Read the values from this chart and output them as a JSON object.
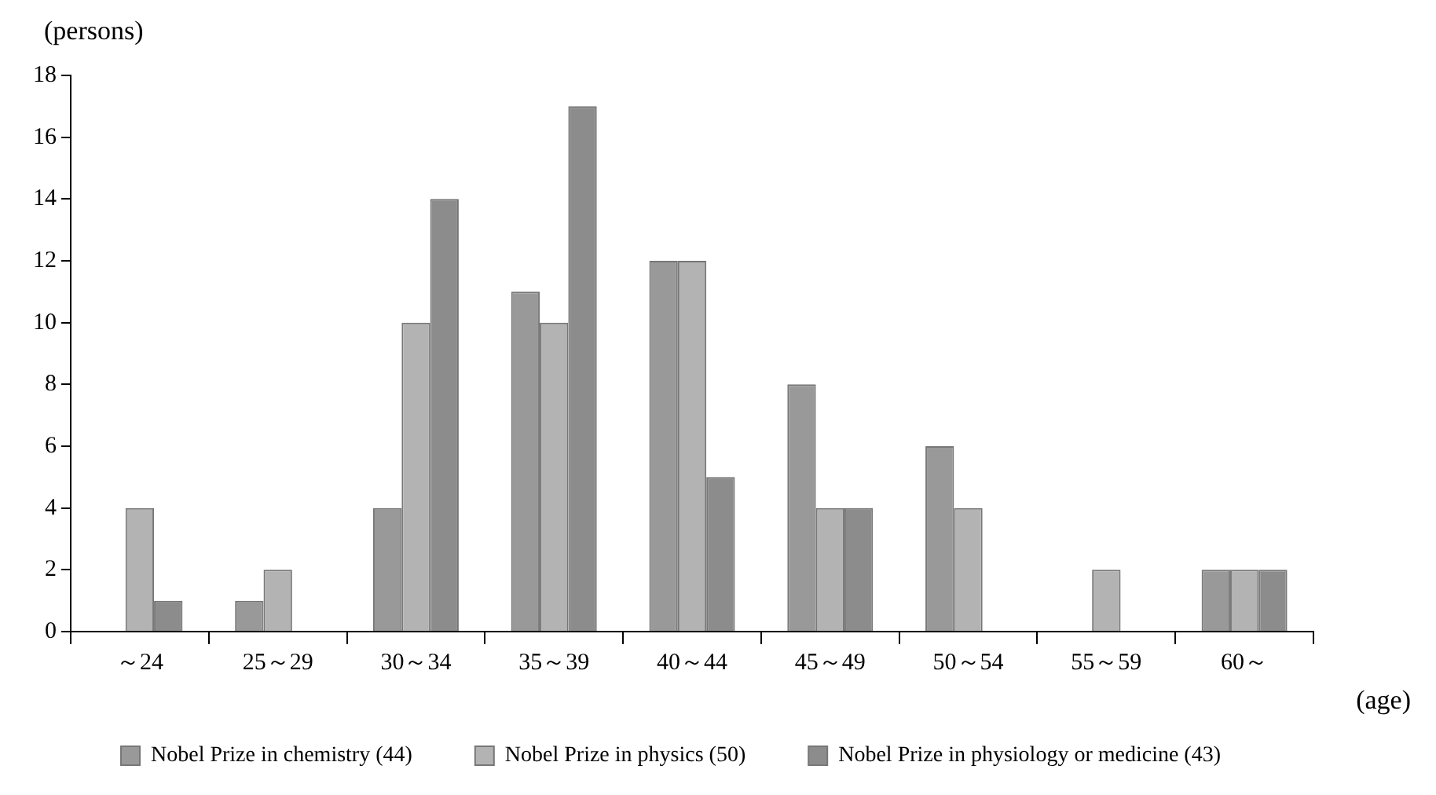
{
  "chart_data": {
    "type": "bar",
    "ylabel": "(persons)",
    "xlabel": "(age)",
    "categories": [
      "～24",
      "25～29",
      "30～34",
      "35～39",
      "40～44",
      "45～49",
      "50～54",
      "55～59",
      "60～"
    ],
    "series": [
      {
        "name": "Nobel Prize in chemistry (44)",
        "color": "#999999",
        "values": [
          0,
          1,
          4,
          11,
          12,
          8,
          6,
          0,
          2
        ]
      },
      {
        "name": "Nobel Prize in physics (50)",
        "color": "#b3b3b3",
        "values": [
          4,
          2,
          10,
          10,
          12,
          4,
          4,
          2,
          2
        ]
      },
      {
        "name": "Nobel Prize in physiology or medicine (43)",
        "color": "#8c8c8c",
        "values": [
          1,
          0,
          14,
          17,
          5,
          4,
          0,
          0,
          2
        ]
      }
    ],
    "ylim": [
      0,
      18
    ],
    "yticks": [
      0,
      2,
      4,
      6,
      8,
      10,
      12,
      14,
      16,
      18
    ],
    "grid": false,
    "legend": "bottom"
  }
}
